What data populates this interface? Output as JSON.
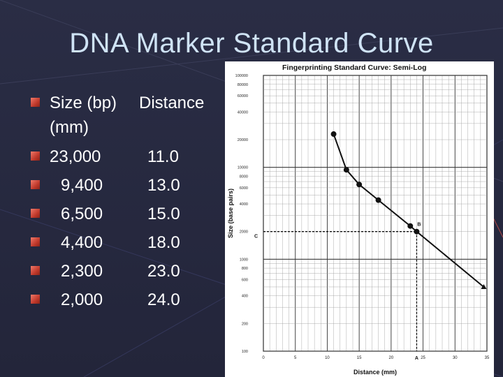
{
  "slide": {
    "title": "DNA Marker Standard Curve",
    "header_row": {
      "size": "Size (bp)",
      "distance": "Distance"
    },
    "header_cont": "(mm)",
    "rows": [
      {
        "size": "23,000",
        "distance": "11.0"
      },
      {
        "size": "9,400",
        "distance": "13.0"
      },
      {
        "size": "6,500",
        "distance": "15.0"
      },
      {
        "size": "4,400",
        "distance": "18.0"
      },
      {
        "size": "2,300",
        "distance": "23.0"
      },
      {
        "size": "2,000",
        "distance": "24.0"
      }
    ],
    "colors": {
      "background": "#2a2d45",
      "title": "#cfe3f5",
      "bullet": "#c0392b"
    }
  },
  "chart_data": {
    "type": "scatter",
    "title": "Fingerprinting Standard Curve: Semi-Log",
    "xlabel": "Distance (mm)",
    "ylabel": "Size (base pairs)",
    "y_scale": "log",
    "xlim": [
      0,
      35
    ],
    "ylim": [
      100,
      100000
    ],
    "x_ticks": [
      0,
      5,
      10,
      15,
      20,
      25,
      30,
      35
    ],
    "y_ticks": [
      100,
      200,
      400,
      600,
      800,
      1000,
      2000,
      4000,
      6000,
      8000,
      10000,
      20000,
      40000,
      60000,
      80000,
      100000
    ],
    "grid": true,
    "points": [
      {
        "x": 11.0,
        "y": 23000
      },
      {
        "x": 13.0,
        "y": 9400
      },
      {
        "x": 15.0,
        "y": 6500
      },
      {
        "x": 18.0,
        "y": 4400
      },
      {
        "x": 23.0,
        "y": 2300
      },
      {
        "x": 24.0,
        "y": 2000
      }
    ],
    "line_end": {
      "x": 34.5,
      "y": 500
    },
    "reference": {
      "x": 24.0,
      "y": 2000
    },
    "annotations": [
      {
        "text": "A",
        "x": 24.0,
        "y": 100
      },
      {
        "text": "B",
        "x": 24.0,
        "y": 2000
      },
      {
        "text": "C",
        "x": 0,
        "y": 2000
      }
    ]
  }
}
